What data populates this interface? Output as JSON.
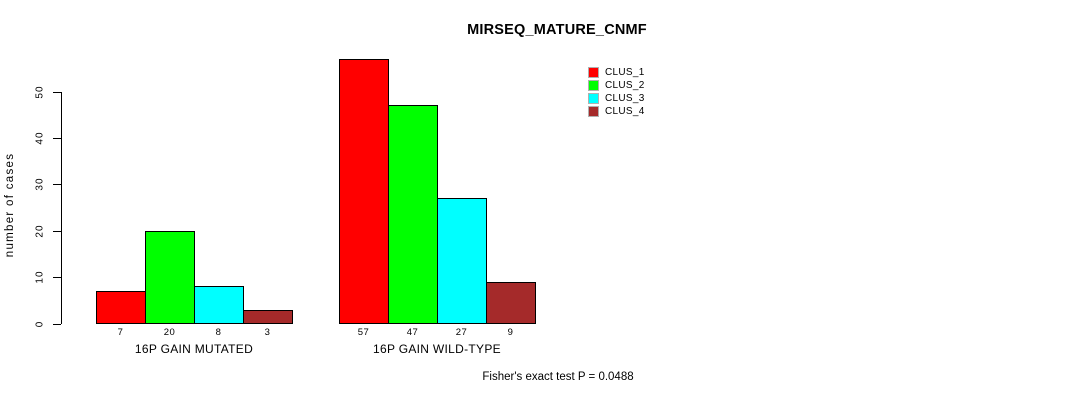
{
  "title": "MIRSEQ_MATURE_CNMF",
  "subtitle": "Fisher's exact test P = 0.0488",
  "chart_data": {
    "type": "bar",
    "title": "MIRSEQ_MATURE_CNMF",
    "categories": [
      "16P GAIN MUTATED",
      "16P GAIN WILD-TYPE"
    ],
    "series": [
      {
        "name": "CLUS_1",
        "color": "#FF0000",
        "values": [
          7,
          57
        ]
      },
      {
        "name": "CLUS_2",
        "color": "#00FF00",
        "values": [
          20,
          47
        ]
      },
      {
        "name": "CLUS_3",
        "color": "#00FFFF",
        "values": [
          8,
          27
        ]
      },
      {
        "name": "CLUS_4",
        "color": "#A52A2A",
        "values": [
          3,
          9
        ]
      }
    ],
    "xlabel": "",
    "ylabel": "number of cases",
    "yticks": [
      0,
      10,
      20,
      30,
      40,
      50
    ],
    "ylim": [
      0,
      57
    ],
    "grid": false,
    "legend_position": "top-right",
    "bar_value_labels": true,
    "annotation": "Fisher's exact test P = 0.0488"
  }
}
